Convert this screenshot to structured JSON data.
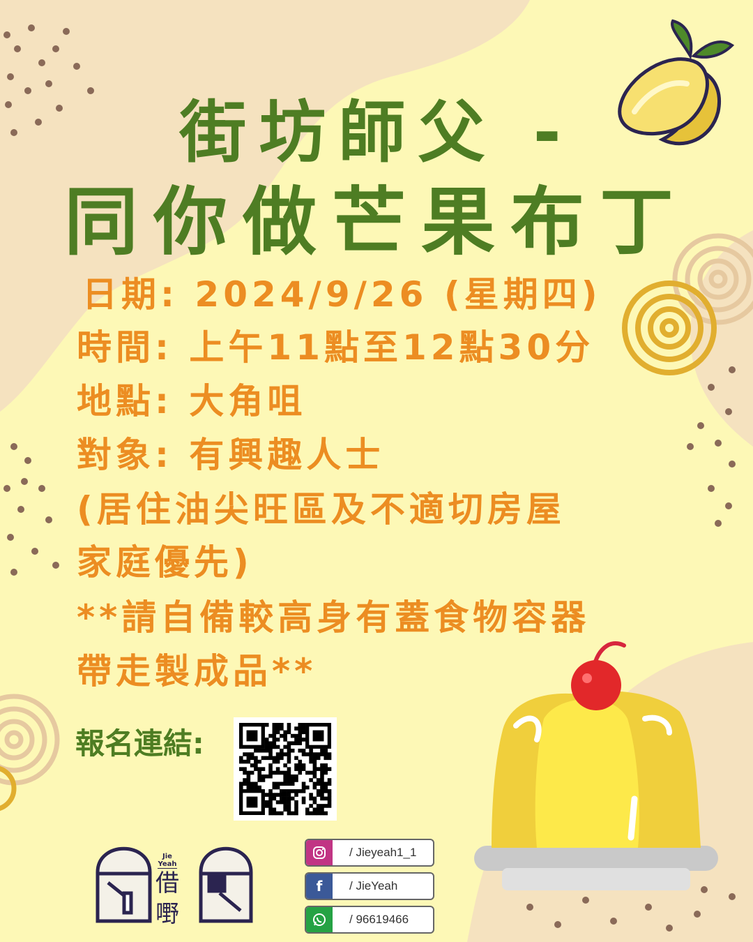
{
  "title": {
    "line1": "街坊師父 -",
    "line2": "同你做芒果布丁"
  },
  "details": {
    "date": "日期: 2024/9/26 (星期四)",
    "time": "時間: 上午11點至12點30分",
    "location": "地點: 大角咀",
    "audience": "對象: 有興趣人士",
    "priority_line1": "(居住油尖旺區及不適切房屋",
    "priority_line2": "家庭優先)",
    "note_line1": "**請自備較高身有蓋食物容器",
    "note_line2": "帶走製成品**"
  },
  "registration": {
    "label": "報名連結:",
    "qr_icon": "qr-code"
  },
  "logo": {
    "small_text": "Jie Yeah",
    "char1": "借",
    "char2": "嘢"
  },
  "socials": [
    {
      "icon": "instagram-icon",
      "color": "#c13584",
      "text": "/ Jieyeah1_1"
    },
    {
      "icon": "facebook-icon",
      "color": "#3b5998",
      "text": "/  JieYeah"
    },
    {
      "icon": "whatsapp-icon",
      "color": "#25a244",
      "text": "/ 96619466"
    }
  ],
  "colors": {
    "background": "#fdf8b6",
    "blob": "#f5e2bf",
    "title_green": "#4e7d23",
    "text_orange": "#ec8d22",
    "dots": "#8a6a58"
  }
}
